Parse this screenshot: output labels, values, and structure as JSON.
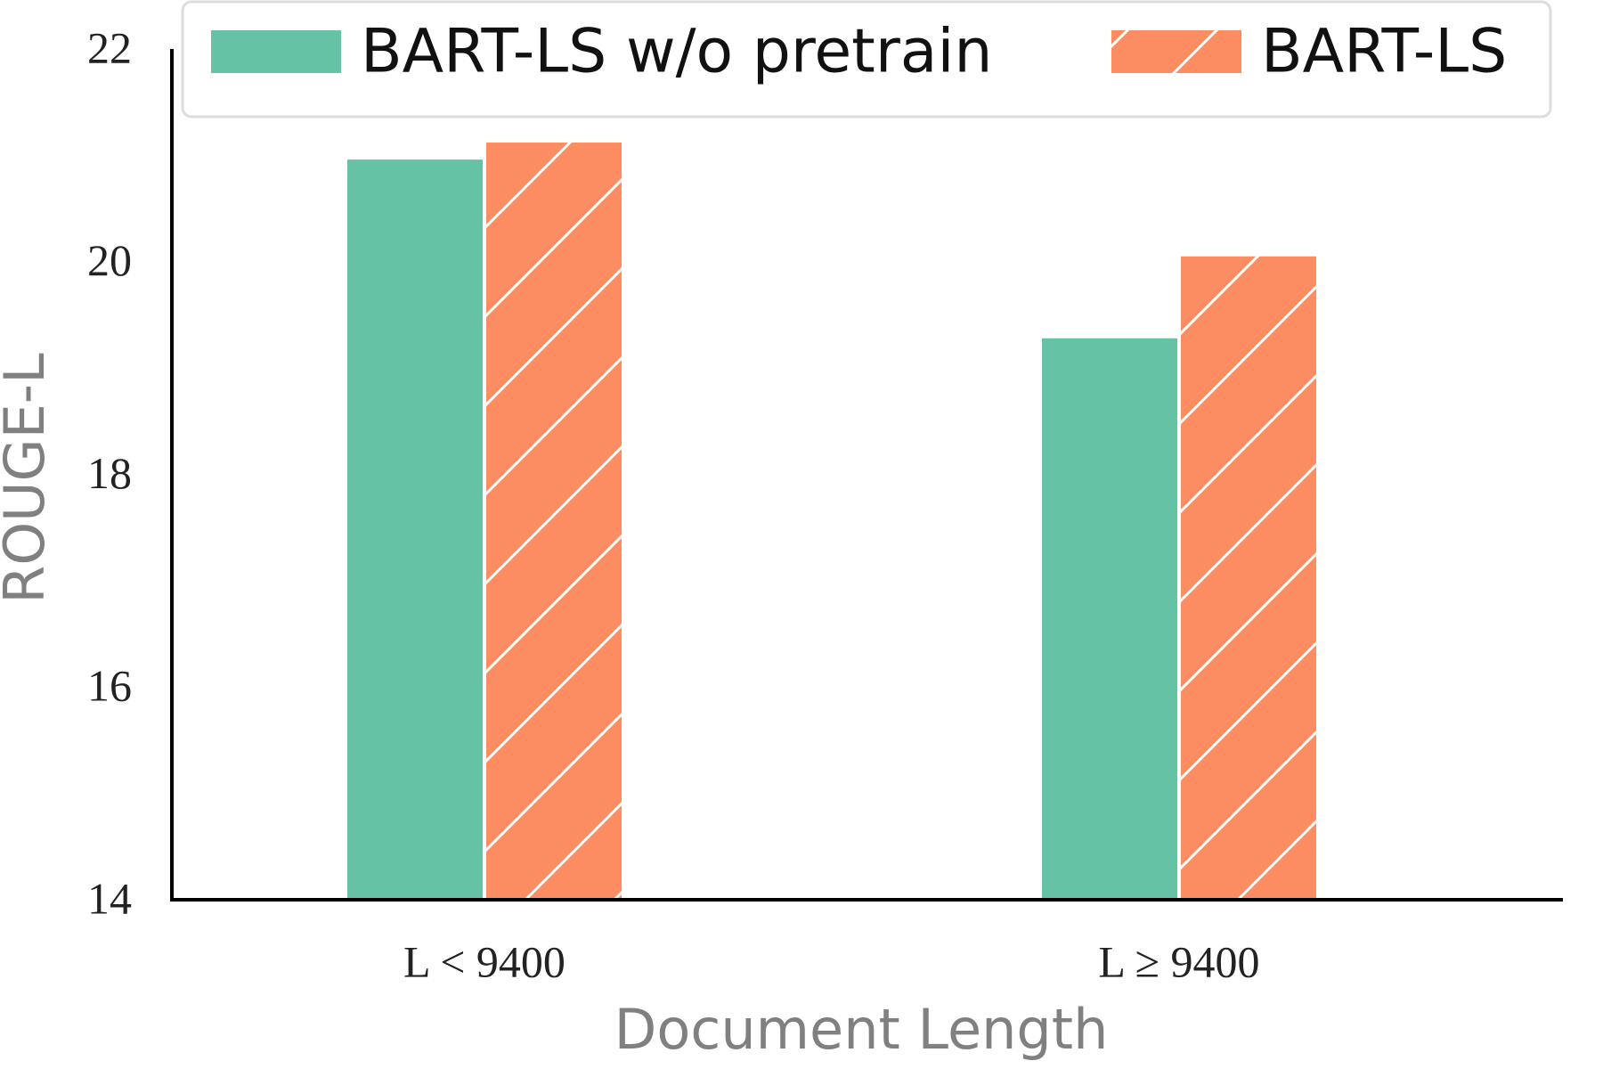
{
  "chart_data": {
    "type": "bar",
    "x_label": "Document Length",
    "y_label": "ROUGE-L",
    "categories": [
      "L < 9400",
      "L ≥ 9400"
    ],
    "series": [
      {
        "name": "BART-LS w/o pretrain",
        "color": "#66c2a5",
        "values": [
          20.96,
          19.28
        ]
      },
      {
        "name": "BART-LS",
        "color": "#fc8d62",
        "hatch": "/",
        "values": [
          21.12,
          20.05
        ]
      }
    ],
    "ylim": [
      14,
      22
    ],
    "yticks": [
      14,
      16,
      18,
      20,
      22
    ]
  }
}
